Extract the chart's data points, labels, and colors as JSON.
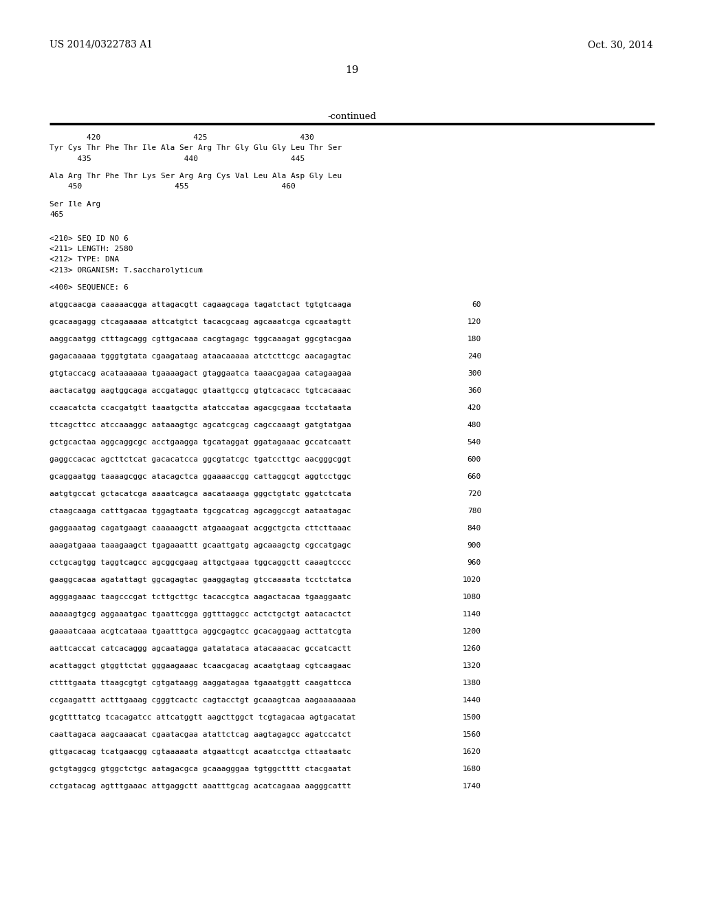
{
  "patent_number": "US 2014/0322783 A1",
  "date": "Oct. 30, 2014",
  "page_number": "19",
  "continued_label": "-continued",
  "background_color": "#ffffff",
  "text_color": "#000000",
  "content": [
    {
      "type": "ruler",
      "text": "        420                    425                    430"
    },
    {
      "type": "seq",
      "text": "Tyr Cys Thr Phe Thr Ile Ala Ser Arg Thr Gly Glu Gly Leu Thr Ser"
    },
    {
      "type": "ruler",
      "text": "      435                    440                    445"
    },
    {
      "type": "blank"
    },
    {
      "type": "seq",
      "text": "Ala Arg Thr Phe Thr Lys Ser Arg Arg Cys Val Leu Ala Asp Gly Leu"
    },
    {
      "type": "ruler",
      "text": "    450                    455                    460"
    },
    {
      "type": "blank"
    },
    {
      "type": "seq",
      "text": "Ser Ile Arg"
    },
    {
      "type": "ruler",
      "text": "465"
    },
    {
      "type": "blank"
    },
    {
      "type": "blank"
    },
    {
      "type": "meta",
      "text": "<210> SEQ ID NO 6"
    },
    {
      "type": "meta",
      "text": "<211> LENGTH: 2580"
    },
    {
      "type": "meta",
      "text": "<212> TYPE: DNA"
    },
    {
      "type": "meta",
      "text": "<213> ORGANISM: T.saccharolyticum"
    },
    {
      "type": "blank"
    },
    {
      "type": "meta",
      "text": "<400> SEQUENCE: 6"
    },
    {
      "type": "blank"
    },
    {
      "type": "dna",
      "seq": "atggcaacga caaaaacgga attagacgtt cagaagcaga tagatctact tgtgtcaaga",
      "num": "60"
    },
    {
      "type": "blank"
    },
    {
      "type": "dna",
      "seq": "gcacaagagg ctcagaaaaa attcatgtct tacacgcaag agcaaatcga cgcaatagtt",
      "num": "120"
    },
    {
      "type": "blank"
    },
    {
      "type": "dna",
      "seq": "aaggcaatgg ctttagcagg cgttgacaaa cacgtagagc tggcaaagat ggcgtacgaa",
      "num": "180"
    },
    {
      "type": "blank"
    },
    {
      "type": "dna",
      "seq": "gagacaaaaa tgggtgtata cgaagataag ataacaaaaa atctcttcgc aacagagtac",
      "num": "240"
    },
    {
      "type": "blank"
    },
    {
      "type": "dna",
      "seq": "gtgtaccacg acataaaaaa tgaaaagact gtaggaatca taaacgagaa catagaagaa",
      "num": "300"
    },
    {
      "type": "blank"
    },
    {
      "type": "dna",
      "seq": "aactacatgg aagtggcaga accgataggc gtaattgccg gtgtcacacc tgtcacaaac",
      "num": "360"
    },
    {
      "type": "blank"
    },
    {
      "type": "dna",
      "seq": "ccaacatcta ccacgatgtt taaatgctta atatccataa agacgcgaaa tcctataata",
      "num": "420"
    },
    {
      "type": "blank"
    },
    {
      "type": "dna",
      "seq": "ttcagcttcc atccaaaggc aataaagtgc agcatcgcag cagccaaagt gatgtatgaa",
      "num": "480"
    },
    {
      "type": "blank"
    },
    {
      "type": "dna",
      "seq": "gctgcactaa aggcaggcgc acctgaagga tgcataggat ggatagaaac gccatcaatt",
      "num": "540"
    },
    {
      "type": "blank"
    },
    {
      "type": "dna",
      "seq": "gaggccacac agcttctcat gacacatcca ggcgtatcgc tgatccttgc aacgggcggt",
      "num": "600"
    },
    {
      "type": "blank"
    },
    {
      "type": "dna",
      "seq": "gcaggaatgg taaaagcggc atacagctca ggaaaaccgg cattaggcgt aggtcctggc",
      "num": "660"
    },
    {
      "type": "blank"
    },
    {
      "type": "dna",
      "seq": "aatgtgccat gctacatcga aaaatcagca aacataaaga gggctgtatc ggatctcata",
      "num": "720"
    },
    {
      "type": "blank"
    },
    {
      "type": "dna",
      "seq": "ctaagcaaga catttgacaa tggagtaata tgcgcatcag agcaggccgt aataatagac",
      "num": "780"
    },
    {
      "type": "blank"
    },
    {
      "type": "dna",
      "seq": "gaggaaatag cagatgaagt caaaaagctt atgaaagaat acggctgcta cttcttaaac",
      "num": "840"
    },
    {
      "type": "blank"
    },
    {
      "type": "dna",
      "seq": "aaagatgaaa taaagaagct tgagaaattt gcaattgatg agcaaagctg cgccatgagc",
      "num": "900"
    },
    {
      "type": "blank"
    },
    {
      "type": "dna",
      "seq": "cctgcagtgg taggtcagcc agcggcgaag attgctgaaa tggcaggctt caaagtcccc",
      "num": "960"
    },
    {
      "type": "blank"
    },
    {
      "type": "dna",
      "seq": "gaaggcacaa agatattagt ggcagagtac gaaggagtag gtccaaaata tcctctatca",
      "num": "1020"
    },
    {
      "type": "blank"
    },
    {
      "type": "dna",
      "seq": "agggagaaac taagcccgat tcttgcttgc tacaccgtca aagactacaa tgaaggaatc",
      "num": "1080"
    },
    {
      "type": "blank"
    },
    {
      "type": "dna",
      "seq": "aaaaagtgcg aggaaatgac tgaattcgga ggtttaggcc actctgctgt aatacactct",
      "num": "1140"
    },
    {
      "type": "blank"
    },
    {
      "type": "dna",
      "seq": "gaaaatcaaa acgtcataaa tgaatttgca aggcgagtcc gcacaggaag acttatcgta",
      "num": "1200"
    },
    {
      "type": "blank"
    },
    {
      "type": "dna",
      "seq": "aattcaccat catcacaggg agcaatagga gatatataca atacaaacac gccatcactt",
      "num": "1260"
    },
    {
      "type": "blank"
    },
    {
      "type": "dna",
      "seq": "acattaggct gtggttctat gggaagaaac tcaacgacag acaatgtaag cgtcaagaac",
      "num": "1320"
    },
    {
      "type": "blank"
    },
    {
      "type": "dna",
      "seq": "cttttgaata ttaagcgtgt cgtgataagg aaggatagaa tgaaatggtt caagattcca",
      "num": "1380"
    },
    {
      "type": "blank"
    },
    {
      "type": "dna",
      "seq": "ccgaagattt actttgaaag cgggtcactc cagtacctgt gcaaagtcaa aagaaaaaaaa",
      "num": "1440"
    },
    {
      "type": "blank"
    },
    {
      "type": "dna",
      "seq": "gcgttttatcg tcacagatcc attcatggtt aagcttggct tcgtagacaa agtgacatat",
      "num": "1500"
    },
    {
      "type": "blank"
    },
    {
      "type": "dna",
      "seq": "caattagaca aagcaaacat cgaatacgaa atattctcag aagtagagcc agatccatct",
      "num": "1560"
    },
    {
      "type": "blank"
    },
    {
      "type": "dna",
      "seq": "gttgacacag tcatgaacgg cgtaaaaata atgaattcgt acaatcctga cttaataatc",
      "num": "1620"
    },
    {
      "type": "blank"
    },
    {
      "type": "dna",
      "seq": "gctgtaggcg gtggctctgc aatagacgca gcaaagggaa tgtggctttt ctacgaatat",
      "num": "1680"
    },
    {
      "type": "blank"
    },
    {
      "type": "dna",
      "seq": "cctgatacag agtttgaaac attgaggctt aaatttgcag acatcagaaa aagggcattt",
      "num": "1740"
    }
  ]
}
